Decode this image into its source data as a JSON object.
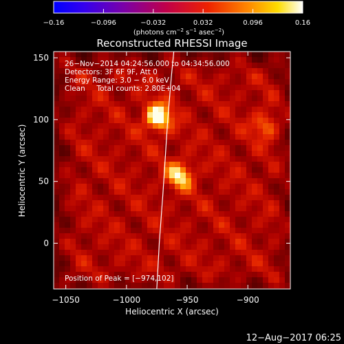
{
  "chart_data": {
    "type": "heatmap",
    "title": "Reconstructed RHESSI Image",
    "xlabel": "Heliocentric X (arcsec)",
    "ylabel": "Heliocentric Y (arcsec)",
    "xlim": [
      -1060,
      -865
    ],
    "ylim": [
      -37,
      155
    ],
    "x_ticks": [
      -1050,
      -1000,
      -950,
      -900
    ],
    "x_tick_labels": [
      "−1050",
      "−1000",
      "−950",
      "−900"
    ],
    "y_ticks": [
      0,
      50,
      100,
      150
    ],
    "y_tick_labels": [
      "0",
      "50",
      "100",
      "150"
    ],
    "colorbar": {
      "range": [
        -0.16,
        0.16
      ],
      "ticks": [
        -0.16,
        -0.096,
        -0.032,
        0.032,
        0.096,
        0.16
      ],
      "tick_labels": [
        "−0.16",
        "−0.096",
        "−0.032",
        "0.032",
        "0.096",
        "0.16"
      ],
      "unit_label": "(photons cm",
      "unit_sup1": "−2",
      "unit_mid": " s",
      "unit_sup2": "−1",
      "unit_mid2": " asec",
      "unit_sup3": "−2",
      "unit_end": ")",
      "colormap": "rainbow-hot (blue-purple-red-yellow-white)"
    },
    "annotations": {
      "time_range": "26−Nov−2014 04:24:56.000 to 04:34:56.000",
      "detectors": "Detectors: 3F 6F 9F, Att 0",
      "energy": "Energy Range: 3.0 − 6.0 keV",
      "method": "Clean     Total counts: 2.80E+04",
      "peak": "Position of Peak = [−974,102]"
    },
    "sources": [
      {
        "x": -974,
        "y": 102,
        "intensity": 1.0
      },
      {
        "x": -956,
        "y": 55,
        "intensity": 0.75
      },
      {
        "x": -886,
        "y": 95,
        "intensity": 0.45
      }
    ],
    "limb_curve": [
      [
        -975,
        -37
      ],
      [
        -973,
        0
      ],
      [
        -970,
        40
      ],
      [
        -968,
        70
      ],
      [
        -966,
        100
      ],
      [
        -963,
        135
      ],
      [
        -961,
        155
      ]
    ]
  },
  "footer": {
    "timestamp": "12−Aug−2017 06:25"
  }
}
